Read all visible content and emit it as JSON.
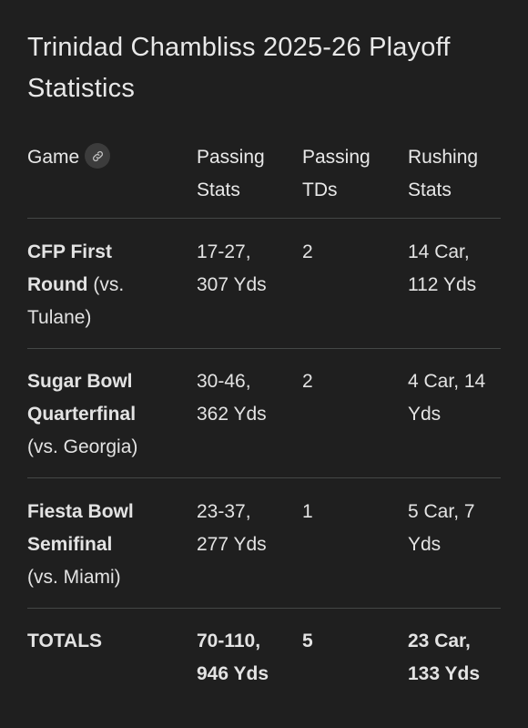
{
  "title": "Trinidad Chambliss 2025-26 Playoff Statistics",
  "table": {
    "headers": {
      "game": "Game",
      "passing_stats": [
        "Passing",
        "Stats"
      ],
      "passing_tds": [
        "Passing",
        "TDs"
      ],
      "rushing_stats": [
        "Rushing",
        "Stats"
      ]
    },
    "rows": [
      {
        "game_bold": [
          "CFP First",
          "Round"
        ],
        "game_rest": [
          "(vs.",
          "Tulane)"
        ],
        "passing": [
          "17-27,",
          "307 Yds"
        ],
        "tds": "2",
        "rushing": [
          "14 Car,",
          "112 Yds"
        ]
      },
      {
        "game_bold": [
          "Sugar Bowl",
          "Quarterfinal"
        ],
        "game_rest": [
          "(vs. Georgia)"
        ],
        "passing": [
          "30-46,",
          "362 Yds"
        ],
        "tds": "2",
        "rushing": [
          "4 Car, 14",
          "Yds"
        ]
      },
      {
        "game_bold": [
          "Fiesta Bowl",
          "Semifinal"
        ],
        "game_rest": [
          "(vs. Miami)"
        ],
        "passing": [
          "23-37,",
          "277 Yds"
        ],
        "tds": "1",
        "rushing": [
          "5 Car, 7",
          "Yds"
        ]
      }
    ],
    "totals": {
      "label": "TOTALS",
      "passing": [
        "70-110,",
        "946 Yds"
      ],
      "tds": "5",
      "rushing": [
        "23 Car,",
        "133 Yds"
      ]
    }
  },
  "icons": {
    "header_link": "link-icon"
  }
}
